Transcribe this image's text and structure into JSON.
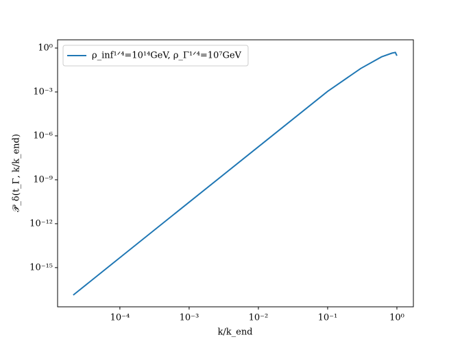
{
  "chart_data": {
    "type": "line",
    "xlabel": "k/k_end",
    "ylabel": "𝒫_δ(t_Γ, k/k_end)",
    "xscale": "log",
    "yscale": "log",
    "xlim": [
      1.26e-05,
      1.73
    ],
    "ylim": [
      2.1e-18,
      3.65
    ],
    "xticks": [
      {
        "value": 0.0001,
        "label": "10⁻⁴"
      },
      {
        "value": 0.001,
        "label": "10⁻³"
      },
      {
        "value": 0.01,
        "label": "10⁻²"
      },
      {
        "value": 0.1,
        "label": "10⁻¹"
      },
      {
        "value": 1,
        "label": "10⁰"
      }
    ],
    "yticks": [
      {
        "value": 1e-15,
        "label": "10⁻¹⁵"
      },
      {
        "value": 1e-12,
        "label": "10⁻¹²"
      },
      {
        "value": 1e-09,
        "label": "10⁻⁹"
      },
      {
        "value": 1e-06,
        "label": "10⁻⁶"
      },
      {
        "value": 0.001,
        "label": "10⁻³"
      },
      {
        "value": 1,
        "label": "10⁰"
      }
    ],
    "legend": "upper left",
    "x": [
      2.12e-05,
      0.0001,
      0.001,
      0.01,
      0.1,
      0.3,
      0.6,
      0.85,
      0.95,
      1.0
    ],
    "series": [
      {
        "name": "ρ_inf¹ᐟ⁴=10¹⁴GeV, ρ_Γ¹ᐟ⁴=10⁷GeV",
        "color": "#1f77b4",
        "values": [
          1.33e-17,
          4.8e-15,
          2.95e-11,
          1.8e-07,
          0.0011,
          0.04,
          0.25,
          0.45,
          0.5,
          0.3
        ]
      }
    ]
  }
}
